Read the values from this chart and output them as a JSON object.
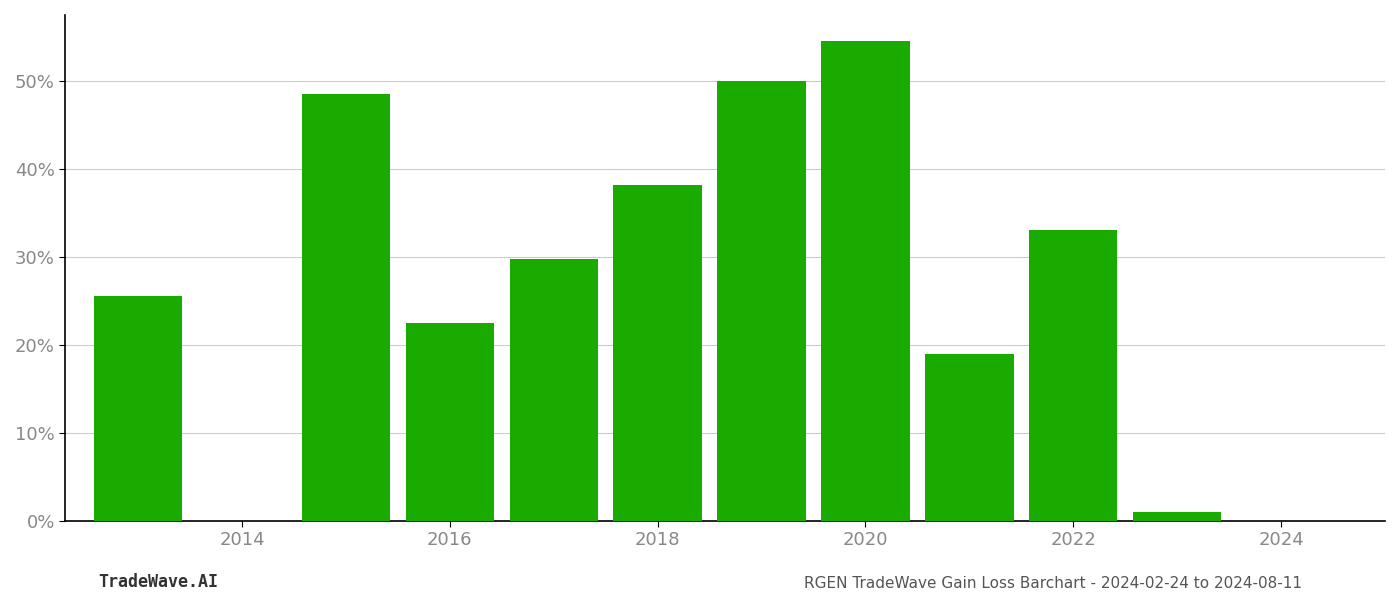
{
  "years": [
    2013,
    2015,
    2016,
    2017,
    2018,
    2019,
    2020,
    2021,
    2022,
    2023
  ],
  "values": [
    0.255,
    0.485,
    0.225,
    0.297,
    0.382,
    0.5,
    0.545,
    0.189,
    0.33,
    0.01
  ],
  "bar_color": "#1aab00",
  "background_color": "#ffffff",
  "grid_color": "#cccccc",
  "title": "RGEN TradeWave Gain Loss Barchart - 2024-02-24 to 2024-08-11",
  "watermark": "TradeWave.AI",
  "ylim_min": 0,
  "ylim_max": 0.575,
  "x_ticks": [
    2014,
    2016,
    2018,
    2020,
    2022,
    2024
  ],
  "xlim_min": 2012.3,
  "xlim_max": 2025.0,
  "tick_label_color": "#888888",
  "title_color": "#555555",
  "watermark_color": "#333333",
  "title_fontsize": 11,
  "watermark_fontsize": 12,
  "tick_fontsize": 13,
  "bar_width": 0.85,
  "spine_color": "#000000"
}
